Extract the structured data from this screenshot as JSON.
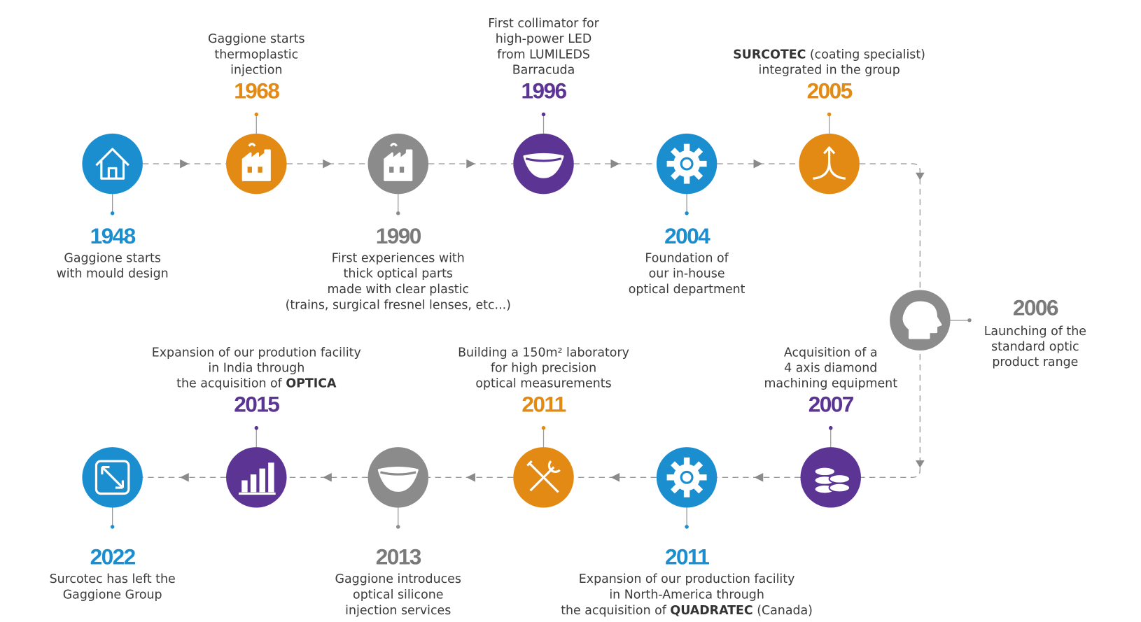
{
  "events": [
    {
      "year": "1948",
      "color": "#1b8ecf",
      "lines": [
        "Gaggione starts",
        "with mould design"
      ]
    },
    {
      "year": "1968",
      "color": "#e28a13",
      "lines": [
        "Gaggione starts",
        "thermoplastic",
        "injection"
      ]
    },
    {
      "year": "1990",
      "color": "#8b8b8b",
      "lines": [
        "First experiences with",
        "thick optical parts",
        "made with clear plastic",
        "(trains, surgical fresnel lenses, etc...)"
      ]
    },
    {
      "year": "1996",
      "color": "#5c3494",
      "lines": [
        "First collimator for",
        "high-power LED",
        "from LUMILEDS",
        "Barracuda"
      ]
    },
    {
      "year": "2004",
      "color": "#1b8ecf",
      "lines": [
        "Foundation of",
        "our in-house",
        "optical department"
      ]
    },
    {
      "year": "2005",
      "color": "#e28a13",
      "lines": [
        [
          {
            "text": "SURCOTEC",
            "bold": true
          },
          {
            "text": " (coating specialist)"
          }
        ],
        "integrated in the group"
      ]
    },
    {
      "year": "2006",
      "color": "#8b8b8b",
      "lines": [
        "Launching of the",
        "standard optic",
        "product range"
      ]
    },
    {
      "year": "2007",
      "color": "#5c3494",
      "lines": [
        "Acquisition of a",
        "4 axis diamond",
        "machining equipment"
      ]
    },
    {
      "year": "2011",
      "color": "#1b8ecf",
      "lines": [
        "Expansion of our production facility",
        "in North-America through",
        [
          {
            "text": "the acquisition of "
          },
          {
            "text": "QUADRATEC",
            "bold": true
          },
          {
            "text": " (Canada)"
          }
        ]
      ]
    },
    {
      "year": "2011",
      "color": "#e28a13",
      "lines": [
        "Building a 150m² laboratory",
        "for high precision",
        "optical measurements"
      ]
    },
    {
      "year": "2013",
      "color": "#8b8b8b",
      "lines": [
        "Gaggione introduces",
        "optical silicone",
        "injection services"
      ]
    },
    {
      "year": "2015",
      "color": "#5c3494",
      "lines": [
        "Expansion of our prodution facility",
        "in India through",
        [
          {
            "text": "the acquisition of "
          },
          {
            "text": "OPTICA",
            "bold": true
          }
        ]
      ]
    },
    {
      "year": "2022",
      "color": "#1b8ecf",
      "lines": [
        "Surcotec has left the",
        "Gaggione Group"
      ]
    }
  ]
}
